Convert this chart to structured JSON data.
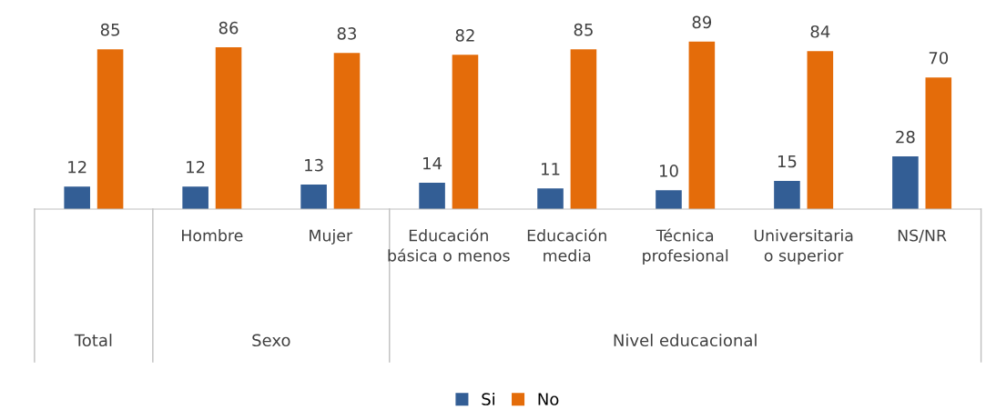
{
  "chart_data": {
    "type": "bar",
    "categories": [
      null,
      "Hombre",
      "Mujer",
      "Educación básica o menos",
      "Educación media",
      "Técnica profesional",
      "Universitaria o superior",
      "NS/NR"
    ],
    "series": [
      {
        "name": "Si",
        "color": "#335e95",
        "values": [
          12,
          12,
          13,
          14,
          11,
          10,
          15,
          28
        ]
      },
      {
        "name": "No",
        "color": "#e46c0a",
        "values": [
          85,
          86,
          83,
          82,
          85,
          89,
          84,
          70
        ]
      }
    ],
    "annotations": [
      "Total",
      "Sexo",
      "Nivel educacional"
    ],
    "data_labels": true,
    "legend": "bottom"
  }
}
